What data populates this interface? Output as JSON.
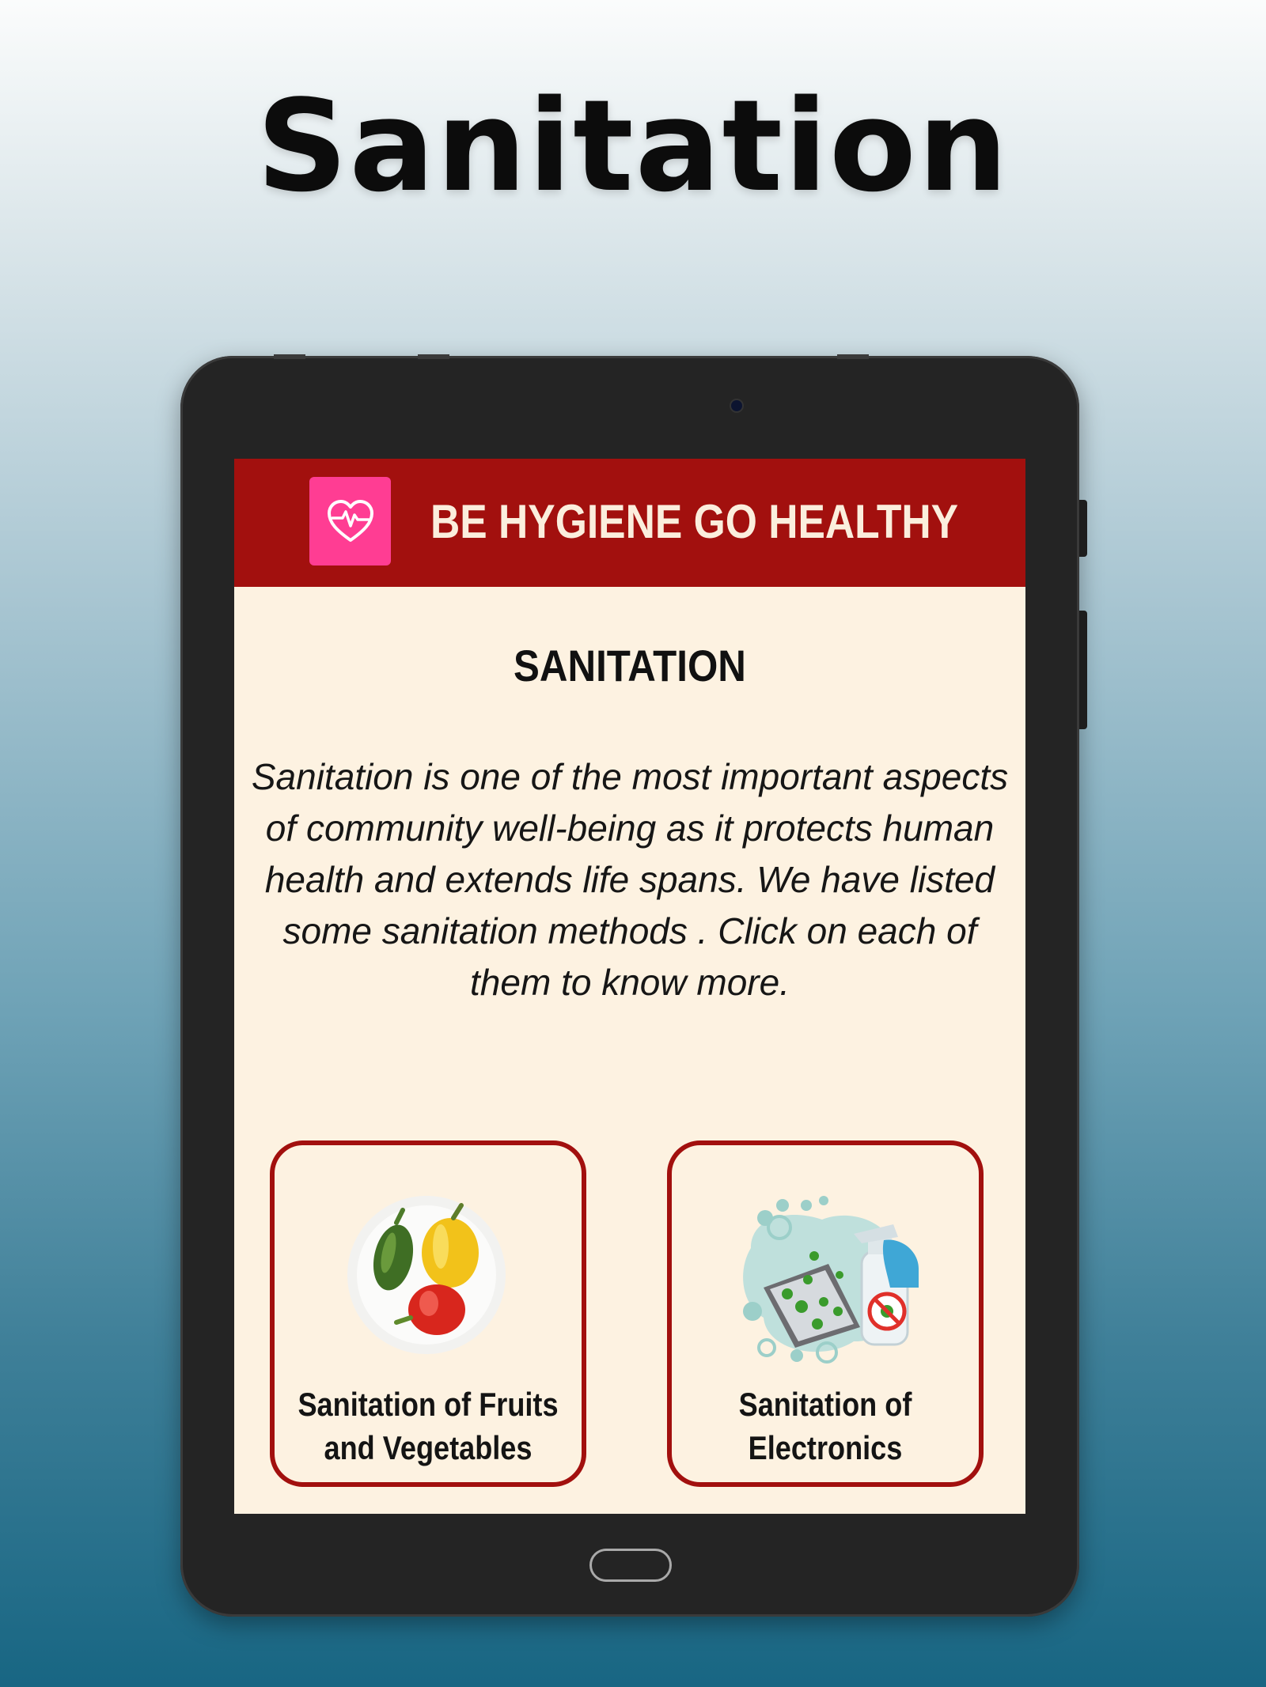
{
  "promo": {
    "title": "Sanitation"
  },
  "app": {
    "title": "BE HYGIENE GO HEALTHY",
    "logo_icon": "heart-pulse-icon",
    "colors": {
      "app_bar": "#a2100e",
      "logo_bg": "#ff3d93",
      "screen_bg": "#fdf2e1",
      "card_border": "#a2100e"
    }
  },
  "page": {
    "heading": "SANITATION",
    "intro_lines": [
      "Sanitation is one of the most important aspects",
      "of community well-being as it protects human",
      "health and extends life spans. We have listed",
      "some sanitation methods . Click on each of",
      "them to know more."
    ]
  },
  "cards": [
    {
      "label_lines": [
        "Sanitation of Fruits",
        "and Vegetables"
      ],
      "image": "bell-peppers-in-bowl"
    },
    {
      "label_lines": [
        "Sanitation of",
        "Electronics"
      ],
      "image": "disinfecting-phone-spray"
    }
  ]
}
